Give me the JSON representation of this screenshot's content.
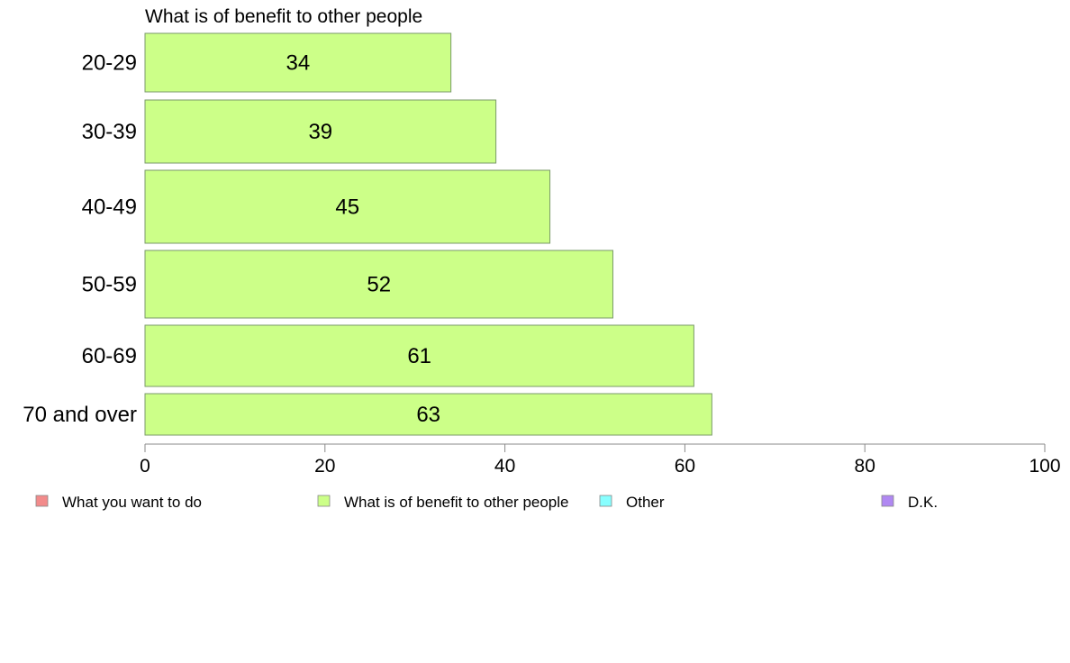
{
  "chart_data": {
    "type": "bar",
    "orientation": "horizontal",
    "title": "What is of benefit to other people",
    "categories": [
      "20-29",
      "30-39",
      "40-49",
      "50-59",
      "60-69",
      "70 and over"
    ],
    "series": [
      {
        "name": "What is of benefit to other people",
        "values": [
          34,
          39,
          45,
          52,
          61,
          63
        ]
      }
    ],
    "xlim": [
      0,
      100
    ],
    "x_ticks": [
      0,
      20,
      40,
      60,
      80,
      100
    ],
    "grid": false,
    "legend_placement": "bottom",
    "legend": [
      {
        "label": "What you want to do",
        "color": "#f28b8b"
      },
      {
        "label": "What is of benefit to other people",
        "color": "#ccff88"
      },
      {
        "label": "Other",
        "color": "#88ffff"
      },
      {
        "label": "D.K.",
        "color": "#b088f2"
      }
    ],
    "bar_color": "#ccff88",
    "bar_stroke": "#7a9a6a"
  }
}
